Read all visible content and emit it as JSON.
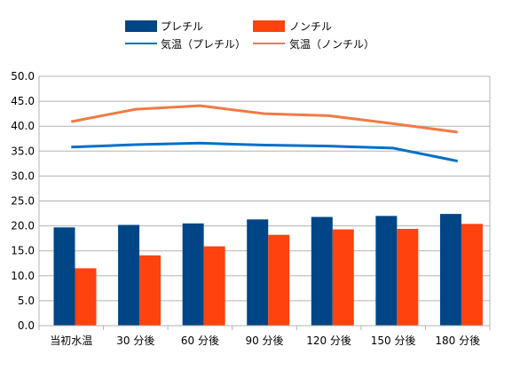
{
  "chart_data": {
    "type": "bar",
    "categories": [
      "当初水温",
      "30 分後",
      "60 分後",
      "90 分後",
      "120 分後",
      "150 分後",
      "180 分後"
    ],
    "series": [
      {
        "name": "プレチル",
        "type": "bar",
        "color": "#004586",
        "values": [
          19.7,
          20.2,
          20.5,
          21.3,
          21.8,
          22.0,
          22.4
        ]
      },
      {
        "name": "ノンチル",
        "type": "bar",
        "color": "#ff420e",
        "values": [
          11.5,
          14.1,
          15.9,
          18.2,
          19.3,
          19.4,
          20.4
        ]
      },
      {
        "name": "気温（プレチル）",
        "type": "line",
        "color": "#0070c8",
        "values": [
          35.8,
          36.3,
          36.6,
          36.2,
          36.0,
          35.6,
          33.0
        ]
      },
      {
        "name": "気温（ノンチル）",
        "type": "line",
        "color": "#f07b45",
        "values": [
          40.9,
          43.4,
          44.1,
          42.5,
          42.1,
          40.5,
          38.8
        ]
      }
    ],
    "ylim": [
      0,
      50
    ],
    "y_ticks": [
      "0.0",
      "5.0",
      "10.0",
      "15.0",
      "20.0",
      "25.0",
      "30.0",
      "35.0",
      "40.0",
      "45.0",
      "50.0"
    ],
    "grid": true,
    "legend_position": "top"
  }
}
